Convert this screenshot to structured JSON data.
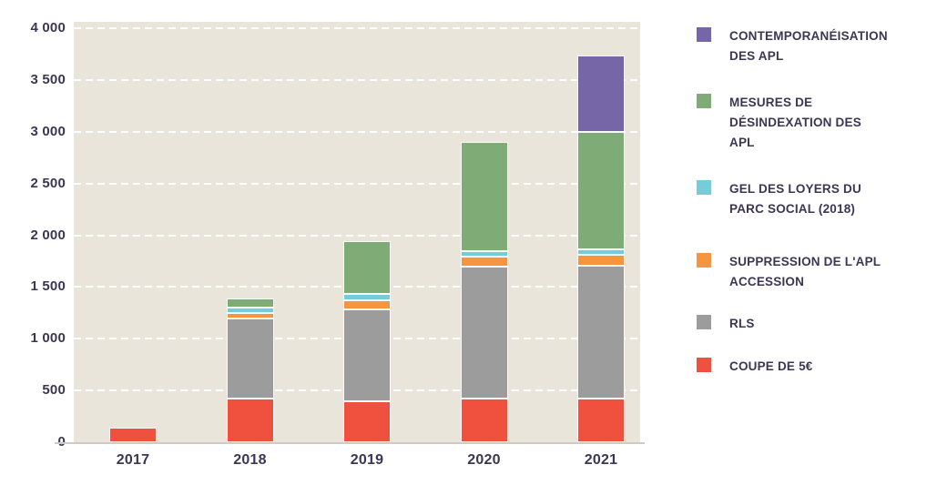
{
  "chart_data": {
    "type": "bar",
    "stacked": true,
    "title": "",
    "xlabel": "",
    "ylabel": "",
    "categories": [
      "2017",
      "2018",
      "2019",
      "2020",
      "2021"
    ],
    "series": [
      {
        "name": "COUPE DE 5€",
        "color": "#F0503E",
        "values": [
          140,
          420,
          400,
          420,
          420
        ]
      },
      {
        "name": "RLS",
        "color": "#9C9C9C",
        "values": [
          0,
          780,
          880,
          1280,
          1290
        ]
      },
      {
        "name": "SUPPRESSION DE L'APL ACCESSION",
        "color": "#F5953F",
        "values": [
          0,
          50,
          90,
          90,
          100
        ]
      },
      {
        "name": "GEL DES LOYERS DU PARC SOCIAL (2018)",
        "color": "#74CDD8",
        "values": [
          0,
          50,
          60,
          60,
          50
        ]
      },
      {
        "name": "MESURES DE DÉSINDEXATION DES APL",
        "color": "#7FAB77",
        "values": [
          0,
          90,
          510,
          1050,
          1140
        ]
      },
      {
        "name": "CONTEMPORANÉISATION DES APL",
        "color": "#7666A8",
        "values": [
          0,
          0,
          0,
          0,
          740
        ]
      }
    ],
    "totals": [
      140,
      1390,
      1940,
      2900,
      3740
    ],
    "ylim": [
      0,
      4000
    ],
    "yticks": [
      {
        "label": "0",
        "value": 0
      },
      {
        "label": "500",
        "value": 500
      },
      {
        "label": "1 000",
        "value": 1000
      },
      {
        "label": "1 500",
        "value": 1500
      },
      {
        "label": "2 000",
        "value": 2000
      },
      {
        "label": "2 500",
        "value": 2500
      },
      {
        "label": "3 000",
        "value": 3000
      },
      {
        "label": "3 500",
        "value": 3500
      },
      {
        "label": "4 000",
        "value": 4000
      }
    ],
    "grid": true,
    "grid_style": "dashed-white",
    "legend_position": "right"
  },
  "legend": {
    "items": [
      {
        "name": "contemporaneisation-des-apl",
        "color": "#7666A8",
        "lines": [
          "CONTEMPORANÉISATION",
          "DES APL"
        ]
      },
      {
        "name": "mesures-de-desindexation-des-apl",
        "color": "#7FAB77",
        "lines": [
          "MESURES DE",
          "DÉSINDEXATION DES",
          "APL"
        ]
      },
      {
        "name": "gel-des-loyers-du-parc-social-2018",
        "color": "#74CDD8",
        "lines": [
          "GEL DES LOYERS DU",
          "PARC SOCIAL (2018)"
        ]
      },
      {
        "name": "suppression-de-l-apl-accession",
        "color": "#F5953F",
        "lines": [
          "SUPPRESSION DE L'APL",
          "ACCESSION"
        ]
      },
      {
        "name": "rls",
        "color": "#9C9C9C",
        "lines": [
          "RLS"
        ]
      },
      {
        "name": "coupe-de-5-euros",
        "color": "#F0503E",
        "lines": [
          "COUPE DE 5€"
        ]
      }
    ]
  },
  "colors": {
    "plot_background": "#E9E5DB",
    "gridline": "#FFFFFF",
    "text": "#3C3653",
    "axis_line": "#CFCBC2"
  }
}
